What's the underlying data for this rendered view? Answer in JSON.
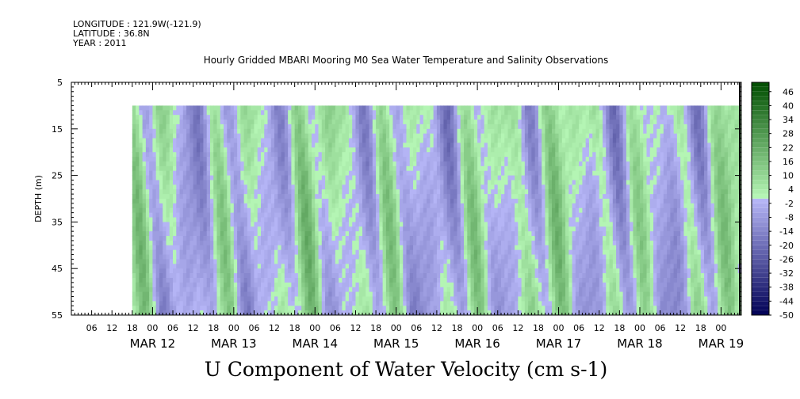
{
  "header": {
    "longitude": "LONGITUDE : 121.9W(-121.9)",
    "latitude": "LATITUDE : 36.8N",
    "year": "YEAR : 2011",
    "title": "Hourly Gridded MBARI Mooring M0 Sea Water Temperature and Salinity Observations",
    "variable": "U Component of Water Velocity (cm s-1)"
  },
  "chart_data": {
    "type": "heatmap",
    "title": "Hourly Gridded MBARI Mooring M0 Sea Water Temperature and Salinity Observations",
    "subtitle": "U Component of Water Velocity (cm s-1)",
    "xlabel": "",
    "ylabel": "DEPTH (m)",
    "y_axis": {
      "range": [
        5,
        55
      ],
      "inverted": true,
      "tick_labels": [
        "5",
        "15",
        "25",
        "35",
        "45",
        "55"
      ]
    },
    "x_axis": {
      "range": [
        "2011-03-11T00:00",
        "2011-03-19T06:00"
      ],
      "hour_tick_labels": [
        "06",
        "12",
        "18",
        "00",
        "06",
        "12",
        "18",
        "00",
        "06",
        "12",
        "18",
        "00",
        "06",
        "12",
        "18",
        "00",
        "06",
        "12",
        "18",
        "00",
        "06",
        "12",
        "18",
        "00",
        "06",
        "12",
        "18",
        "00",
        "06",
        "12",
        "18",
        "00"
      ],
      "day_labels": [
        "MAR 12",
        "MAR 13",
        "MAR 14",
        "MAR 15",
        "MAR 16",
        "MAR 17",
        "MAR 18",
        "MAR 19"
      ]
    },
    "data_extent": {
      "time_start": "2011-03-11T18:00",
      "time_end": "2011-03-19T06:00",
      "depth_top": 10,
      "depth_bottom": 55
    },
    "colorbar": {
      "min": -50,
      "max": 50,
      "step": 2,
      "tick_labels": [
        "46",
        "40",
        "34",
        "28",
        "22",
        "16",
        "10",
        "4",
        "-2",
        "-8",
        "-14",
        "-20",
        "-26",
        "-32",
        "-38",
        "-44",
        "-50"
      ],
      "low_color": "#000055",
      "mid_low_color": "#b8b8f8",
      "mid_high_color": "#b8f8b8",
      "high_color": "#004d00"
    },
    "grid": false,
    "legend": "colorbar-right"
  }
}
